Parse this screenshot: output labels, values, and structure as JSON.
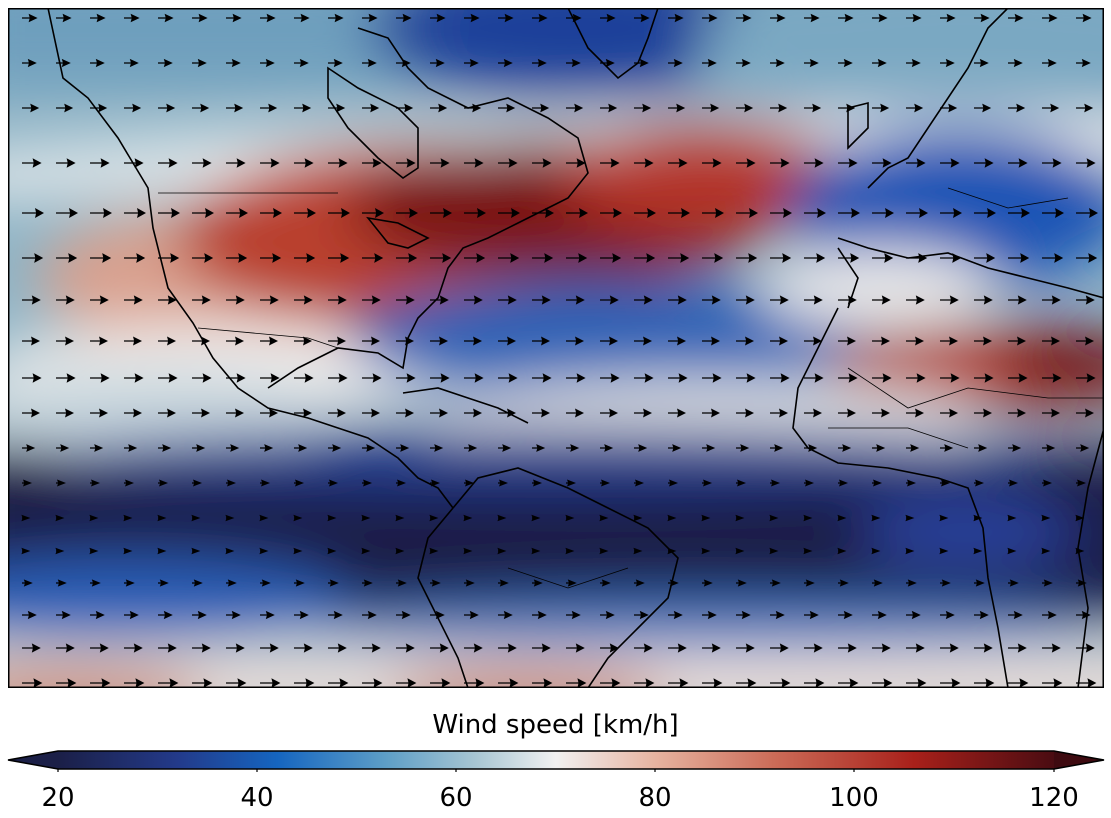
{
  "colorbar": {
    "label": "Wind speed [km/h]",
    "min": 20,
    "max": 120,
    "ticks": [
      "20",
      "40",
      "60",
      "80",
      "100",
      "120"
    ],
    "extend": "both",
    "colors": [
      "#1b1f47",
      "#1f3a8a",
      "#1565c0",
      "#5e9fc7",
      "#a8c6d3",
      "#f1f1f1",
      "#e9b7a4",
      "#cc6b57",
      "#a8201a",
      "#4a0c12"
    ]
  },
  "map": {
    "projection": "equirectangular",
    "region": "North and South America, Atlantic Ocean, Europe, Africa",
    "field": "wind speed with wind direction arrows",
    "arrow_color": "#000000",
    "coastline_color": "#000000"
  }
}
